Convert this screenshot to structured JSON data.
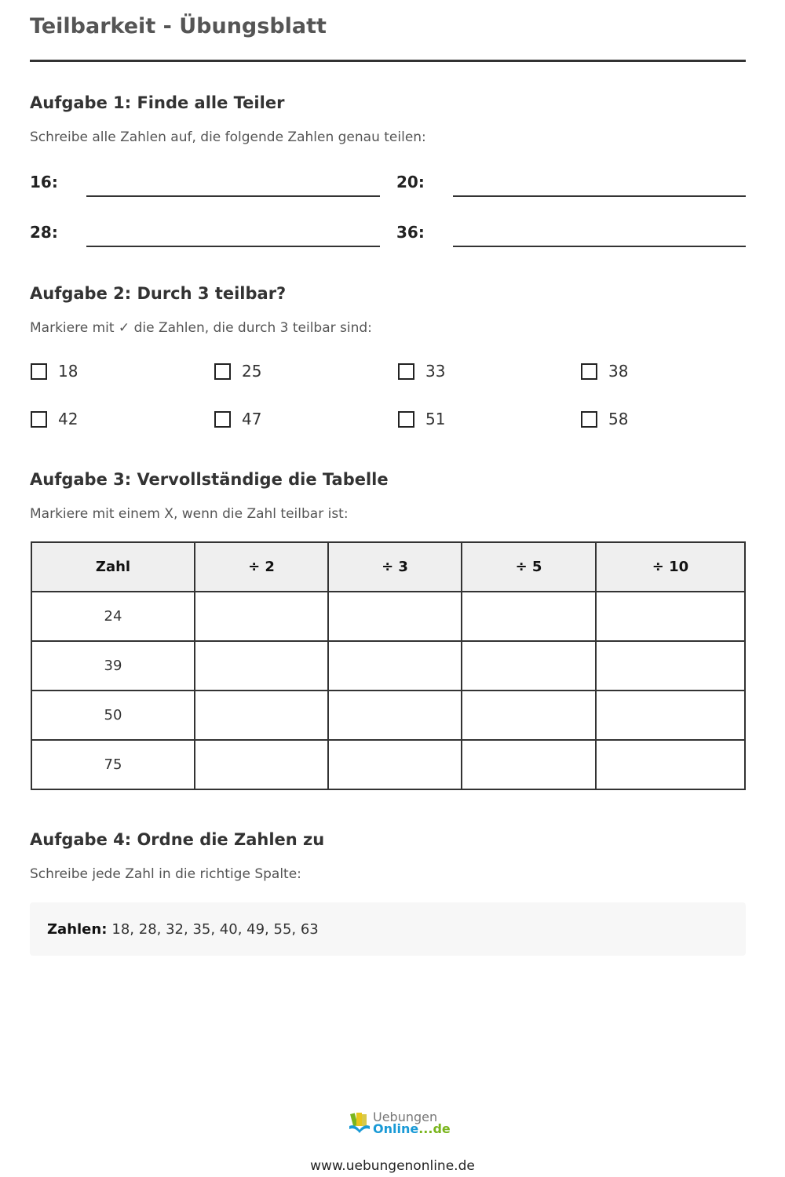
{
  "title": "Teilbarkeit - Übungsblatt",
  "task1": {
    "heading": "Aufgabe 1: Finde alle Teiler",
    "instruction": "Schreibe alle Zahlen auf, die folgende Zahlen genau teilen:",
    "fields": [
      "16:",
      "20:",
      "28:",
      "36:"
    ]
  },
  "task2": {
    "heading": "Aufgabe 2: Durch 3 teilbar?",
    "instruction": "Markiere mit ✓ die Zahlen, die durch 3 teilbar sind:",
    "options": [
      "18",
      "25",
      "33",
      "38",
      "42",
      "47",
      "51",
      "58"
    ]
  },
  "task3": {
    "heading": "Aufgabe 3: Vervollständige die Tabelle",
    "instruction": "Markiere mit einem X, wenn die Zahl teilbar ist:",
    "headers": [
      "Zahl",
      "÷ 2",
      "÷ 3",
      "÷ 5",
      "÷ 10"
    ],
    "rows": [
      "24",
      "39",
      "50",
      "75"
    ]
  },
  "task4": {
    "heading": "Aufgabe 4: Ordne die Zahlen zu",
    "instruction": "Schreibe jede Zahl in die richtige Spalte:",
    "numbers_label": "Zahlen:",
    "numbers": "18, 28, 32, 35, 40, 49, 55, 63"
  },
  "logo": {
    "line1": "Uebungen",
    "line2": "Online",
    "line3": "...de"
  },
  "footer": "www.uebungenonline.de"
}
